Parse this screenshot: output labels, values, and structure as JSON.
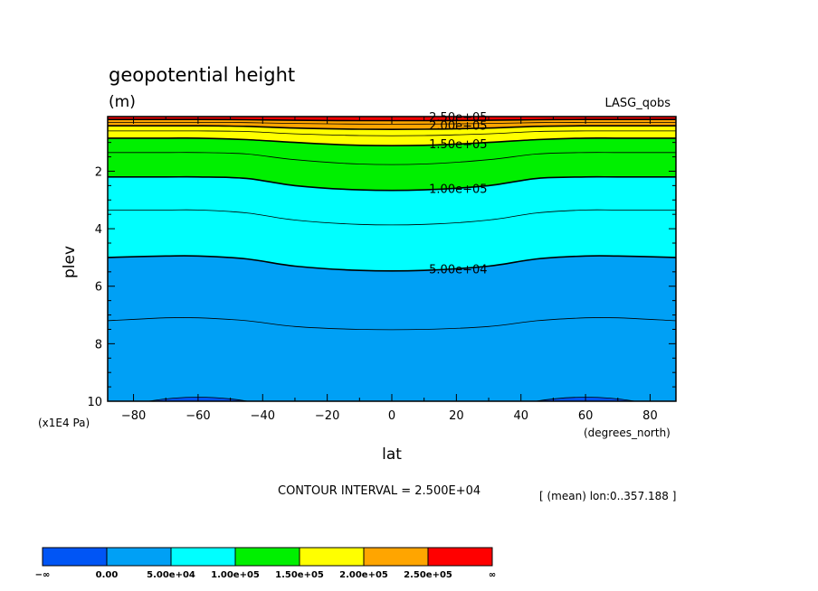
{
  "chart_data": {
    "type": "heatmap",
    "title": "geopotential height",
    "units": "(m)",
    "dataset": "LASG_qobs",
    "xlabel": "lat",
    "ylabel": "plev",
    "x_units": "(degrees_north)",
    "y_units": "(x1E4 Pa)",
    "xlim": [
      -88,
      88
    ],
    "ylim": [
      10,
      0.1
    ],
    "x_ticks": [
      -80,
      -60,
      -40,
      -20,
      0,
      20,
      40,
      60,
      80
    ],
    "x_tick_labels": [
      "−80",
      "−60",
      "−40",
      "−20",
      "0",
      "20",
      "40",
      "60",
      "80"
    ],
    "y_ticks": [
      2,
      4,
      6,
      8,
      10
    ],
    "y_tick_labels": [
      "2",
      "4",
      "6",
      "8",
      "10"
    ],
    "contour_interval_text": "CONTOUR INTERVAL = 2.500E+04",
    "region_text": "[ (mean) lon:0..357.188 ]",
    "profile_lat": [
      -88,
      -70,
      -60,
      -45,
      -30,
      -10,
      10,
      30,
      45,
      60,
      70,
      88
    ],
    "contour_levels": [
      {
        "value": 25000,
        "plev": [
          7.2,
          7.1,
          7.1,
          7.2,
          7.4,
          7.5,
          7.5,
          7.4,
          7.2,
          7.1,
          7.1,
          7.2
        ]
      },
      {
        "value": 50000,
        "plev": [
          5.0,
          4.95,
          4.95,
          5.05,
          5.3,
          5.45,
          5.45,
          5.3,
          5.05,
          4.95,
          4.95,
          5.0
        ]
      },
      {
        "value": 75000,
        "plev": [
          3.35,
          3.35,
          3.35,
          3.45,
          3.7,
          3.85,
          3.85,
          3.7,
          3.45,
          3.35,
          3.35,
          3.35
        ]
      },
      {
        "value": 100000,
        "plev": [
          2.2,
          2.2,
          2.2,
          2.25,
          2.5,
          2.65,
          2.65,
          2.5,
          2.25,
          2.2,
          2.2,
          2.2
        ]
      },
      {
        "value": 125000,
        "plev": [
          1.35,
          1.35,
          1.35,
          1.4,
          1.6,
          1.75,
          1.75,
          1.6,
          1.4,
          1.35,
          1.35,
          1.35
        ]
      },
      {
        "value": 150000,
        "plev": [
          0.85,
          0.85,
          0.85,
          0.9,
          1.0,
          1.1,
          1.1,
          1.0,
          0.9,
          0.85,
          0.85,
          0.85
        ]
      },
      {
        "value": 175000,
        "plev": [
          0.6,
          0.6,
          0.6,
          0.62,
          0.7,
          0.76,
          0.76,
          0.7,
          0.62,
          0.6,
          0.6,
          0.6
        ]
      },
      {
        "value": 200000,
        "plev": [
          0.42,
          0.42,
          0.42,
          0.44,
          0.5,
          0.54,
          0.54,
          0.5,
          0.44,
          0.42,
          0.42,
          0.42
        ]
      },
      {
        "value": 225000,
        "plev": [
          0.3,
          0.3,
          0.3,
          0.31,
          0.34,
          0.36,
          0.36,
          0.34,
          0.31,
          0.3,
          0.3,
          0.3
        ]
      },
      {
        "value": 250000,
        "plev": [
          0.2,
          0.2,
          0.2,
          0.21,
          0.23,
          0.24,
          0.24,
          0.23,
          0.21,
          0.2,
          0.2,
          0.2
        ]
      }
    ],
    "contour_labels": [
      {
        "text": "2.50e+05",
        "lat": 20,
        "plev": 0.1
      },
      {
        "text": "2.00e+05",
        "lat": 20,
        "plev": 0.4
      },
      {
        "text": "1.50e+05",
        "lat": 20,
        "plev": 1.05
      },
      {
        "text": "1.00e+05",
        "lat": 20,
        "plev": 2.6
      },
      {
        "text": "5.00e+04",
        "lat": 20,
        "plev": 5.4
      }
    ],
    "color_key": {
      "bins": [
        {
          "color": "#0055f5"
        },
        {
          "color": "#00a0f5"
        },
        {
          "color": "#00ffff"
        },
        {
          "color": "#00f000"
        },
        {
          "color": "#ffff00"
        },
        {
          "color": "#ffa500"
        },
        {
          "color": "#ff0000"
        }
      ],
      "labels": [
        "−∞",
        "0.00",
        "5.00e+04",
        "1.00e+05",
        "1.50e+05",
        "2.00e+05",
        "2.50e+05",
        "∞"
      ]
    },
    "fill_colors": [
      "#00a0f5",
      "#00a0f5",
      "#00ffff",
      "#00ffff",
      "#00f000",
      "#00f000",
      "#ffff00",
      "#ffff00",
      "#ffa500",
      "#ffa500",
      "#ff0000"
    ]
  }
}
